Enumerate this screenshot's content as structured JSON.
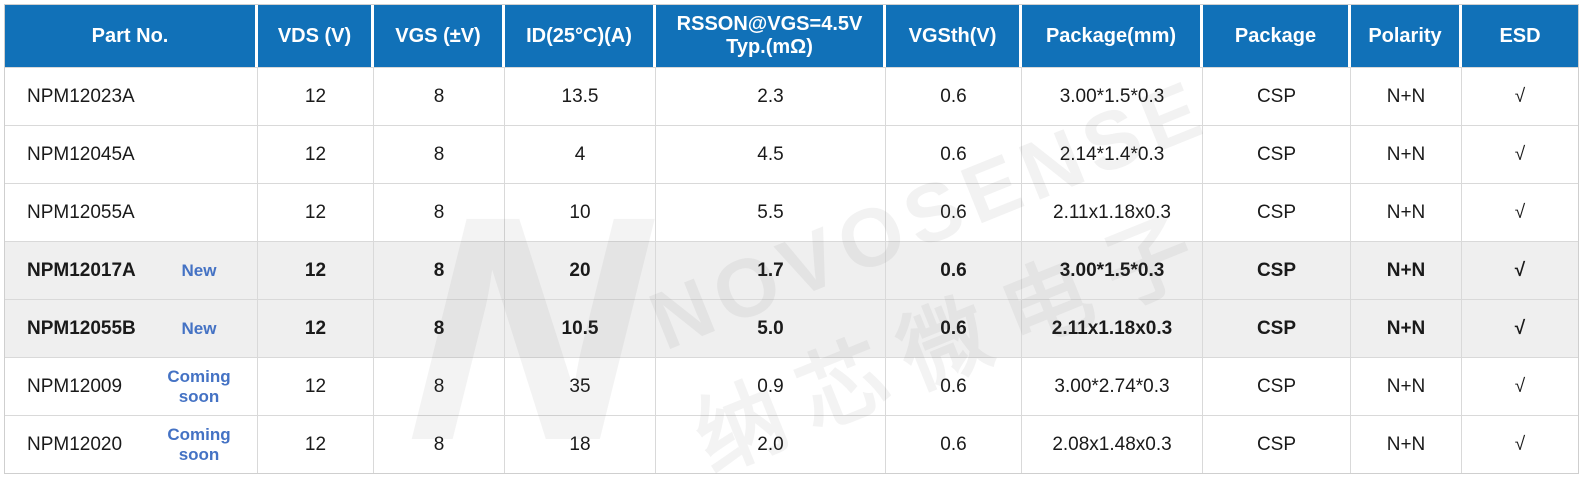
{
  "colors": {
    "header_bg": "#1171B8",
    "status_blue": "#4472C4",
    "highlight_bg": "#EFEFEF",
    "border": "#D9D9D9"
  },
  "watermark": {
    "logo_letter": "N",
    "brand": "NOVOSENSE",
    "brand_cn": "纳芯微电子"
  },
  "table": {
    "columns": [
      {
        "label": "Part No."
      },
      {
        "label": "VDS (V)"
      },
      {
        "label": "VGS (±V)"
      },
      {
        "label": "ID(25°C)(A)"
      },
      {
        "label": "RSSON@VGS=4.5V\nTyp.(mΩ)"
      },
      {
        "label": "VGSth(V)"
      },
      {
        "label": "Package(mm)"
      },
      {
        "label": "Package"
      },
      {
        "label": "Polarity"
      },
      {
        "label": "ESD"
      }
    ],
    "rows": [
      {
        "part": "NPM12023A",
        "status": "",
        "vds": "12",
        "vgs": "8",
        "id": "13.5",
        "rsson": "2.3",
        "vgsth": "0.6",
        "package_mm": "3.00*1.5*0.3",
        "package": "CSP",
        "polarity": "N+N",
        "esd": "√"
      },
      {
        "part": "NPM12045A",
        "status": "",
        "vds": "12",
        "vgs": "8",
        "id": "4",
        "rsson": "4.5",
        "vgsth": "0.6",
        "package_mm": "2.14*1.4*0.3",
        "package": "CSP",
        "polarity": "N+N",
        "esd": "√"
      },
      {
        "part": "NPM12055A",
        "status": "",
        "vds": "12",
        "vgs": "8",
        "id": "10",
        "rsson": "5.5",
        "vgsth": "0.6",
        "package_mm": "2.11x1.18x0.3",
        "package": "CSP",
        "polarity": "N+N",
        "esd": "√"
      },
      {
        "part": "NPM12017A",
        "status": "New",
        "vds": "12",
        "vgs": "8",
        "id": "20",
        "rsson": "1.7",
        "vgsth": "0.6",
        "package_mm": "3.00*1.5*0.3",
        "package": "CSP",
        "polarity": "N+N",
        "esd": "√"
      },
      {
        "part": "NPM12055B",
        "status": "New",
        "vds": "12",
        "vgs": "8",
        "id": "10.5",
        "rsson": "5.0",
        "vgsth": "0.6",
        "package_mm": "2.11x1.18x0.3",
        "package": "CSP",
        "polarity": "N+N",
        "esd": "√"
      },
      {
        "part": "NPM12009",
        "status": "Coming soon",
        "vds": "12",
        "vgs": "8",
        "id": "35",
        "rsson": "0.9",
        "vgsth": "0.6",
        "package_mm": "3.00*2.74*0.3",
        "package": "CSP",
        "polarity": "N+N",
        "esd": "√"
      },
      {
        "part": "NPM12020",
        "status": "Coming soon",
        "vds": "12",
        "vgs": "8",
        "id": "18",
        "rsson": "2.0",
        "vgsth": "0.6",
        "package_mm": "2.08x1.48x0.3",
        "package": "CSP",
        "polarity": "N+N",
        "esd": "√"
      }
    ]
  }
}
